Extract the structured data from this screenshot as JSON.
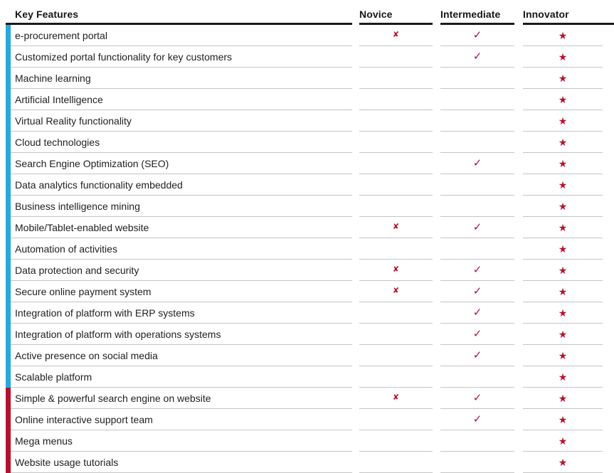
{
  "table": {
    "feature_header": "Key Features",
    "columns": [
      "Novice",
      "Intermediate",
      "Innovator"
    ],
    "rows": [
      {
        "label": "e-procurement portal",
        "bar": "blue",
        "novice": "cross",
        "intermediate": "check",
        "innovator": "star"
      },
      {
        "label": "Customized portal functionality for key customers",
        "bar": "blue",
        "novice": "",
        "intermediate": "check",
        "innovator": "star"
      },
      {
        "label": "Machine learning",
        "bar": "blue",
        "novice": "",
        "intermediate": "",
        "innovator": "star"
      },
      {
        "label": "Artificial Intelligence",
        "bar": "blue",
        "novice": "",
        "intermediate": "",
        "innovator": "star"
      },
      {
        "label": "Virtual Reality functionality",
        "bar": "blue",
        "novice": "",
        "intermediate": "",
        "innovator": "star"
      },
      {
        "label": "Cloud technologies",
        "bar": "blue",
        "novice": "",
        "intermediate": "",
        "innovator": "star"
      },
      {
        "label": "Search Engine Optimization (SEO)",
        "bar": "blue",
        "novice": "",
        "intermediate": "check",
        "innovator": "star"
      },
      {
        "label": "Data analytics functionality embedded",
        "bar": "blue",
        "novice": "",
        "intermediate": "",
        "innovator": "star"
      },
      {
        "label": "Business intelligence mining",
        "bar": "blue",
        "novice": "",
        "intermediate": "",
        "innovator": "star"
      },
      {
        "label": "Mobile/Tablet-enabled website",
        "bar": "blue",
        "novice": "cross",
        "intermediate": "check",
        "innovator": "star"
      },
      {
        "label": "Automation of activities",
        "bar": "blue",
        "novice": "",
        "intermediate": "",
        "innovator": "star"
      },
      {
        "label": "Data protection and security",
        "bar": "blue",
        "novice": "cross",
        "intermediate": "check",
        "innovator": "star"
      },
      {
        "label": "Secure online payment system",
        "bar": "blue",
        "novice": "cross",
        "intermediate": "check",
        "innovator": "star"
      },
      {
        "label": "Integration of platform with ERP systems",
        "bar": "blue",
        "novice": "",
        "intermediate": "check",
        "innovator": "star"
      },
      {
        "label": "Integration of platform with operations systems",
        "bar": "blue",
        "novice": "",
        "intermediate": "check",
        "innovator": "star"
      },
      {
        "label": "Active presence on social media",
        "bar": "blue",
        "novice": "",
        "intermediate": "check",
        "innovator": "star"
      },
      {
        "label": "Scalable platform",
        "bar": "blue",
        "novice": "",
        "intermediate": "",
        "innovator": "star"
      },
      {
        "label": "Simple & powerful search engine on website",
        "bar": "red",
        "novice": "cross",
        "intermediate": "check",
        "innovator": "star"
      },
      {
        "label": "Online interactive support team",
        "bar": "red",
        "novice": "",
        "intermediate": "check",
        "innovator": "star"
      },
      {
        "label": "Mega menus",
        "bar": "red",
        "novice": "",
        "intermediate": "",
        "innovator": "star"
      },
      {
        "label": "Website usage tutorials",
        "bar": "red",
        "novice": "",
        "intermediate": "",
        "innovator": "star"
      }
    ]
  },
  "symbols": {
    "cross": "✘",
    "check": "✓",
    "star": "★"
  },
  "colors": {
    "category_blue": "#29a8dc",
    "category_red": "#b3122f",
    "symbol_red": "#b0142f",
    "header_rule": "#1b1b1b",
    "row_rule": "#c5c5c5",
    "text": "#1f1f1f"
  }
}
